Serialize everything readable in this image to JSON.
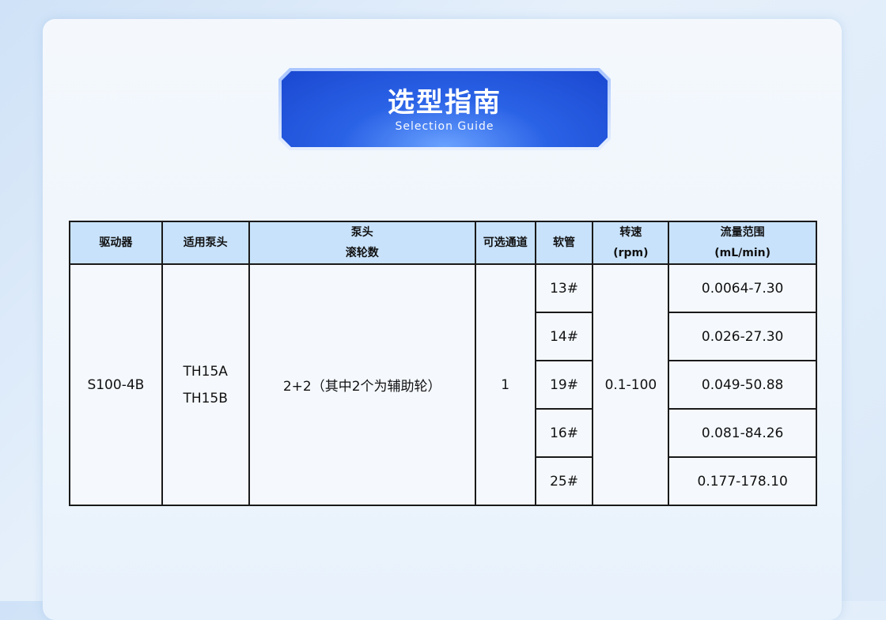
{
  "banner": {
    "title": "选型指南",
    "subtitle": "Selection  Guide"
  },
  "table": {
    "headers": [
      [
        "驱动器"
      ],
      [
        "适用泵头"
      ],
      [
        "泵头",
        "滚轮数"
      ],
      [
        "可选通道"
      ],
      [
        "软管"
      ],
      [
        "转速",
        "(rpm)"
      ],
      [
        "流量范围",
        "(mL/min)"
      ]
    ],
    "driver": "S100-4B",
    "pump_heads": [
      "TH15A",
      "TH15B"
    ],
    "rollers": "2+2（其中2个为辅助轮）",
    "channels": "1",
    "speed": "0.1-100",
    "rows": [
      {
        "tube": "13#",
        "flow": "0.0064-7.30"
      },
      {
        "tube": "14#",
        "flow": "0.026-27.30"
      },
      {
        "tube": "19#",
        "flow": "0.049-50.88"
      },
      {
        "tube": "16#",
        "flow": "0.081-84.26"
      },
      {
        "tube": "25#",
        "flow": "0.177-178.10"
      }
    ]
  }
}
